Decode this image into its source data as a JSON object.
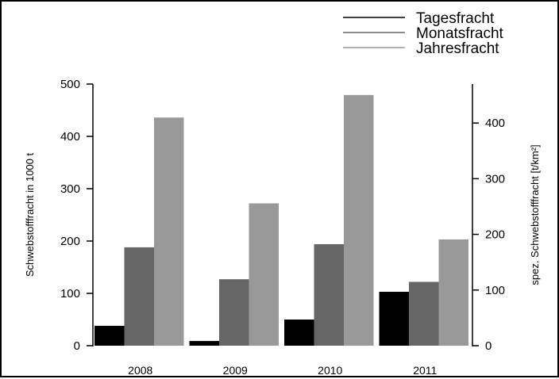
{
  "chart_data": {
    "type": "bar",
    "title": "",
    "categories": [
      "2008",
      "2009",
      "2010",
      "2011"
    ],
    "series": [
      {
        "name": "Tagesfracht",
        "color": "#000000",
        "values": [
          38,
          9,
          50,
          103
        ]
      },
      {
        "name": "Monatsfracht",
        "color": "#666666",
        "values": [
          188,
          127,
          194,
          122
        ]
      },
      {
        "name": "Jahresfracht",
        "color": "#999999",
        "values": [
          436,
          272,
          479,
          203
        ]
      }
    ],
    "ylabel": "Schwebstofffracht in 1000 t",
    "ylim": [
      0,
      500
    ],
    "yticks": [
      "0",
      "100",
      "200",
      "300",
      "400",
      "500"
    ],
    "y2label": "spez. Schwebstofffracht [t/km²]",
    "y2lim": [
      0,
      470
    ],
    "y2ticks": [
      "0",
      "100",
      "200",
      "300",
      "400"
    ],
    "legend_position": "top-right",
    "grid": false
  }
}
